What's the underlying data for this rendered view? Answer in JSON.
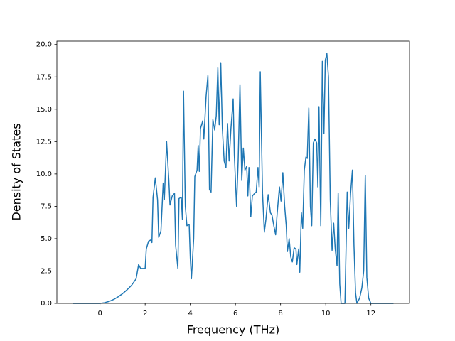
{
  "chart_data": {
    "type": "line",
    "xlabel": "Frequency (THz)",
    "ylabel": "Density of States",
    "x": [
      -1.2,
      0,
      0.2,
      0.4,
      0.6,
      0.8,
      1.0,
      1.2,
      1.4,
      1.6,
      1.71,
      1.8,
      2.0,
      2.05,
      2.15,
      2.25,
      2.3,
      2.35,
      2.45,
      2.55,
      2.6,
      2.7,
      2.8,
      2.85,
      2.95,
      3.05,
      3.1,
      3.2,
      3.3,
      3.35,
      3.45,
      3.5,
      3.6,
      3.65,
      3.7,
      3.78,
      3.85,
      3.95,
      4.0,
      4.05,
      4.15,
      4.2,
      4.3,
      4.35,
      4.4,
      4.45,
      4.55,
      4.6,
      4.7,
      4.78,
      4.85,
      4.92,
      5.0,
      5.08,
      5.15,
      5.22,
      5.28,
      5.35,
      5.42,
      5.5,
      5.58,
      5.65,
      5.72,
      5.8,
      5.9,
      5.95,
      6.05,
      6.12,
      6.2,
      6.28,
      6.35,
      6.42,
      6.5,
      6.55,
      6.6,
      6.68,
      6.75,
      6.85,
      6.92,
      7.0,
      7.05,
      7.1,
      7.2,
      7.28,
      7.35,
      7.45,
      7.55,
      7.62,
      7.7,
      7.78,
      7.85,
      7.95,
      8.02,
      8.1,
      8.18,
      8.25,
      8.3,
      8.38,
      8.45,
      8.52,
      8.6,
      8.68,
      8.72,
      8.8,
      8.85,
      8.92,
      8.98,
      9.05,
      9.12,
      9.18,
      9.25,
      9.32,
      9.38,
      9.45,
      9.52,
      9.6,
      9.65,
      9.7,
      9.78,
      9.85,
      9.92,
      9.98,
      10.05,
      10.12,
      10.2,
      10.28,
      10.35,
      10.42,
      10.5,
      10.55,
      10.62,
      10.68,
      10.85,
      10.95,
      11.02,
      11.1,
      11.18,
      11.25,
      11.32,
      11.38,
      11.5,
      11.6,
      11.68,
      11.75,
      11.82,
      11.9,
      12.0,
      13.0
    ],
    "series": [
      {
        "color": "#1f77b4",
        "values": [
          0,
          0,
          0.05,
          0.15,
          0.3,
          0.5,
          0.75,
          1.05,
          1.4,
          1.9,
          3.0,
          2.7,
          2.7,
          4.2,
          4.8,
          4.9,
          4.7,
          8.2,
          9.7,
          8.0,
          5.1,
          5.6,
          9.3,
          8.0,
          12.5,
          9.5,
          7.6,
          8.3,
          8.5,
          4.5,
          2.7,
          8.1,
          8.2,
          6.5,
          16.4,
          7.5,
          6.0,
          6.1,
          3.5,
          1.9,
          5.0,
          9.8,
          10.3,
          12.2,
          10.2,
          13.5,
          14.1,
          12.7,
          16.0,
          17.6,
          8.8,
          8.6,
          14.2,
          13.4,
          14.5,
          18.2,
          13.8,
          18.6,
          13.5,
          11.0,
          10.5,
          13.9,
          11.0,
          13.5,
          15.8,
          11.5,
          7.5,
          11.0,
          16.9,
          9.5,
          12.0,
          10.3,
          10.6,
          8.3,
          10.5,
          6.7,
          8.3,
          8.5,
          8.6,
          10.5,
          9.0,
          17.9,
          8.5,
          5.5,
          6.5,
          8.4,
          7.0,
          6.8,
          6.0,
          5.3,
          7.0,
          9.0,
          7.9,
          10.1,
          7.5,
          6.0,
          4.0,
          5.0,
          3.6,
          3.2,
          4.3,
          4.2,
          3.0,
          4.2,
          2.4,
          7.0,
          5.8,
          10.3,
          11.3,
          11.2,
          15.1,
          7.5,
          6.0,
          12.4,
          12.7,
          12.4,
          9.0,
          15.2,
          6.0,
          18.7,
          13.1,
          18.8,
          19.3,
          17.5,
          8.0,
          4.1,
          6.2,
          4.2,
          2.9,
          8.5,
          1.5,
          0,
          0,
          8.6,
          5.8,
          8.5,
          10.3,
          4.5,
          0.8,
          0,
          0.4,
          1.2,
          2.5,
          9.9,
          2.0,
          0.4,
          0,
          0
        ]
      }
    ],
    "xlim": [
      -1.91,
      13.71
    ],
    "ylim": [
      0,
      20.26
    ],
    "xticks": [
      0,
      2,
      4,
      6,
      8,
      10,
      12
    ],
    "yticks": [
      {
        "value": 0,
        "label": "0.0"
      },
      2.5,
      {
        "value": 5,
        "label": "5.0"
      },
      7.5,
      {
        "value": 10,
        "label": "10.0"
      },
      12.5,
      {
        "value": 15,
        "label": "15.0"
      },
      17.5,
      {
        "value": 20,
        "label": "20.0"
      }
    ],
    "grid": false
  }
}
